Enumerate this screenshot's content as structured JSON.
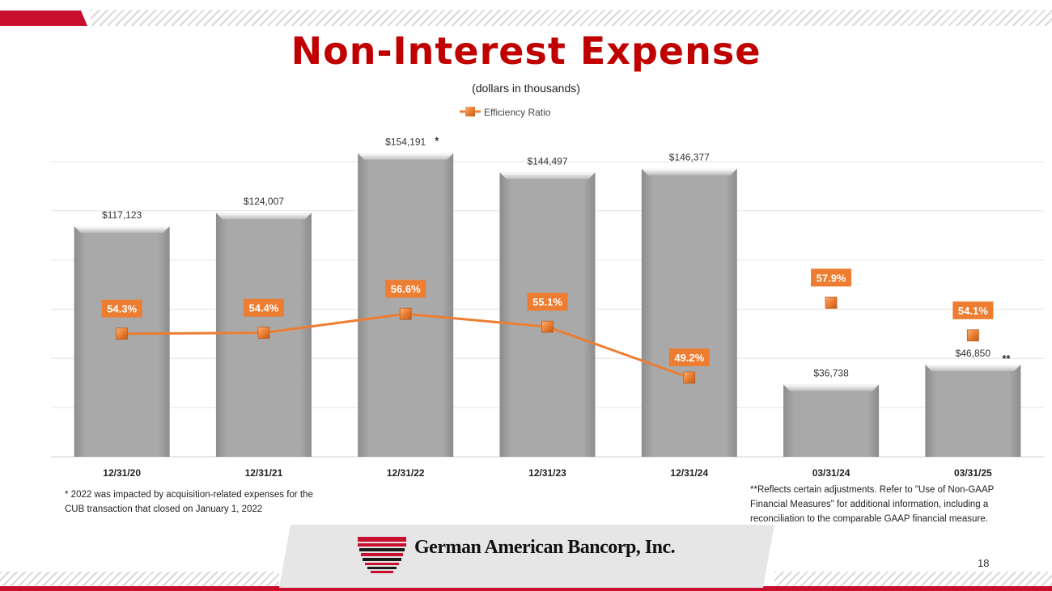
{
  "slide": {
    "title": "Non-Interest Expense",
    "subtitle": "(dollars in thousands)",
    "footnote_left": "* 2022 was impacted by acquisition-related expenses for the CUB transaction that closed on January 1, 2022",
    "footnote_right": "**Reflects certain adjustments. Refer to \"Use of Non-GAAP Financial Measures\" for additional information, including a reconciliation to the comparable GAAP financial measure.",
    "company_name": "German American Bancorp, Inc.",
    "page_number": "18",
    "colors": {
      "brand_red": "#c00000",
      "bar_gray": "#a6a6a6",
      "ratio_orange": "#ed7d31"
    }
  },
  "chart_data": {
    "type": "bar",
    "categories": [
      "12/31/20",
      "12/31/21",
      "12/31/22",
      "12/31/23",
      "12/31/24",
      "03/31/24",
      "03/31/25"
    ],
    "bar_values": [
      117123,
      124007,
      154191,
      144497,
      146377,
      36738,
      46850
    ],
    "bar_labels": [
      "$117,123",
      "$124,007",
      "$154,191",
      "$144,497",
      "$146,377",
      "$36,738",
      "$46,850"
    ],
    "bar_label_marks": [
      "",
      "",
      "*",
      "",
      "",
      "",
      "**"
    ],
    "line_series": {
      "name": "Efficiency Ratio",
      "type": "line",
      "values": [
        54.3,
        54.4,
        56.6,
        55.1,
        49.2,
        57.9,
        54.1
      ],
      "labels": [
        "54.3%",
        "54.4%",
        "56.6%",
        "55.1%",
        "49.2%",
        "57.9%",
        "54.1%"
      ],
      "connected_groups": [
        [
          0,
          1,
          2,
          3,
          4
        ],
        [
          5
        ],
        [
          6
        ]
      ]
    },
    "legend_placement": "top-center",
    "grid": true
  }
}
